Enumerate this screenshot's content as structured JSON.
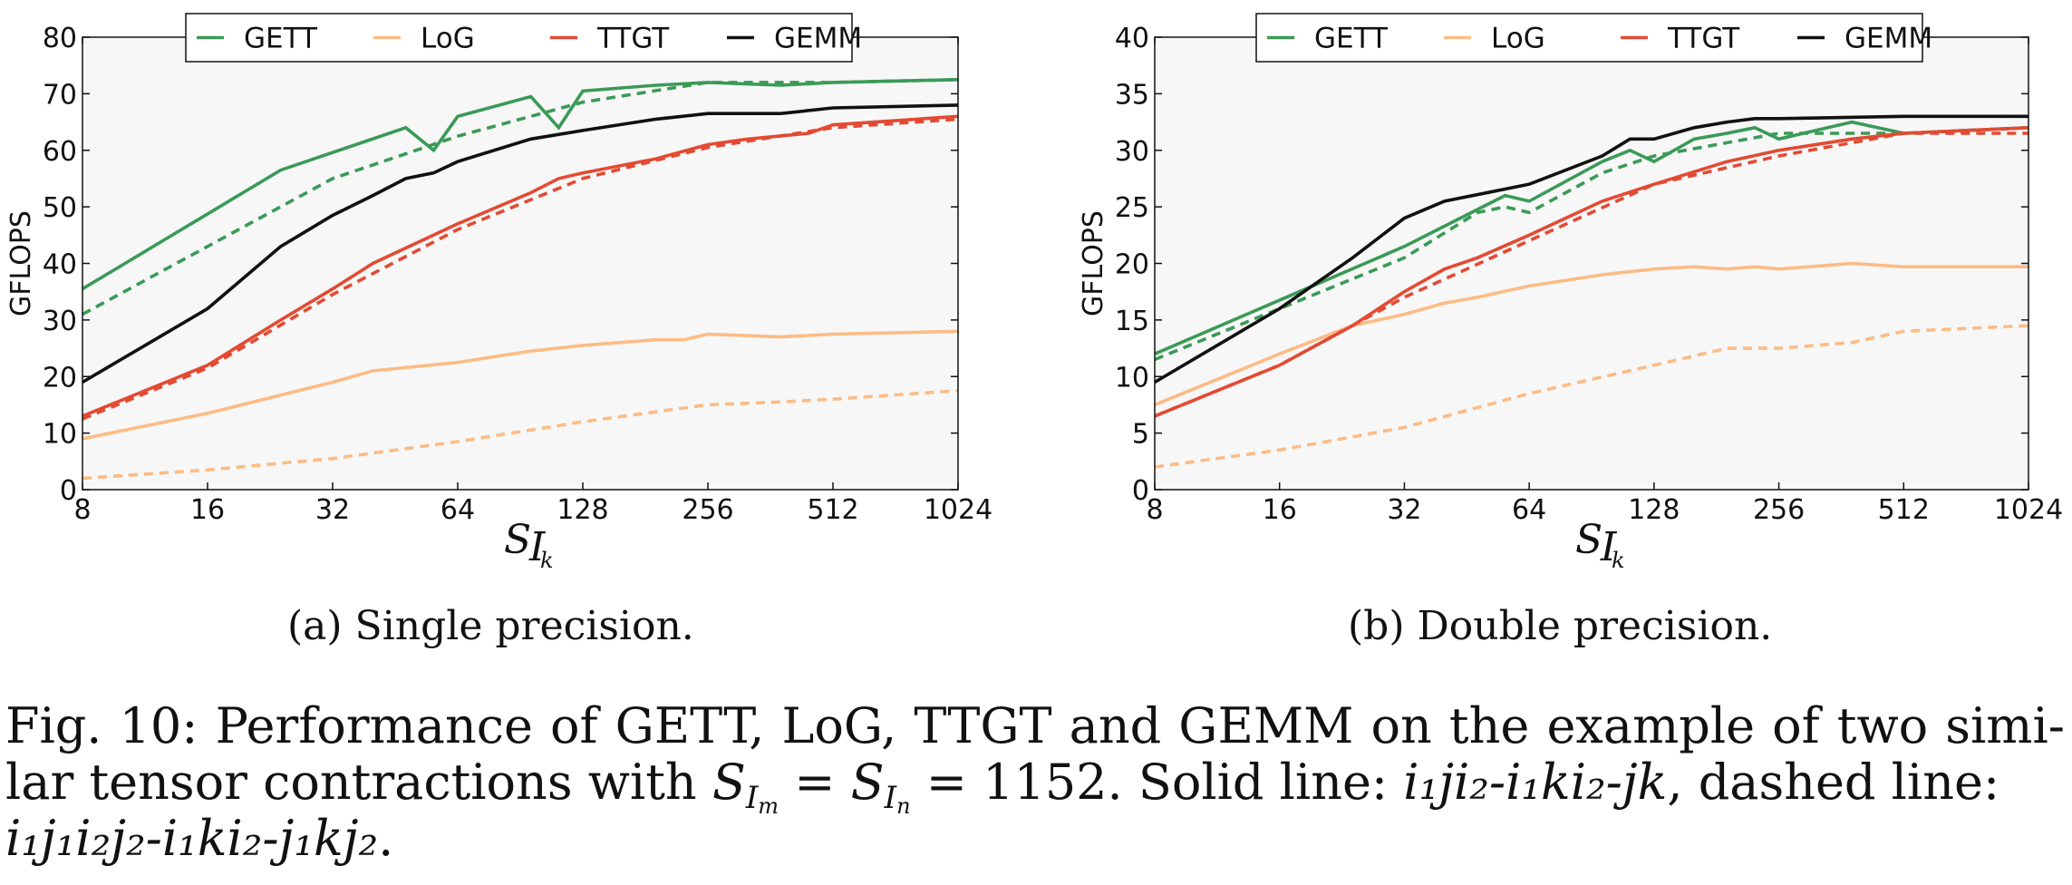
{
  "chart_data": [
    {
      "type": "line",
      "ylabel": "GFLOPS",
      "xlabel": "S_{I_k}",
      "xscale": "log2",
      "xlim": [
        8,
        1024
      ],
      "ylim": [
        0,
        80
      ],
      "xticks": [
        8,
        16,
        32,
        64,
        128,
        256,
        512,
        1024
      ],
      "xtick_labels": [
        "8",
        "16",
        "32",
        "64",
        "128",
        "256",
        "512",
        "1024"
      ],
      "yticks": [
        0,
        10,
        20,
        30,
        40,
        50,
        60,
        70,
        80
      ],
      "ytick_labels": [
        "0",
        "10",
        "20",
        "30",
        "40",
        "50",
        "60",
        "70",
        "80"
      ],
      "legend": {
        "placement": "top-center",
        "entries": [
          "GETT",
          "LoG",
          "TTGT",
          "GEMM"
        ]
      },
      "background": "#f7f7f7",
      "caption": "(a) Single precision.",
      "series": [
        {
          "name": "GETT",
          "style": "solid",
          "color": "#3a9a57",
          "x": [
            8,
            24,
            48,
            56,
            64,
            96,
            112,
            128,
            192,
            256,
            384,
            512,
            1024
          ],
          "values": [
            35.5,
            56.5,
            64,
            60,
            66,
            69.5,
            64,
            70.5,
            71.5,
            72,
            71.5,
            72,
            72.5
          ]
        },
        {
          "name": "GETT",
          "style": "dashed",
          "color": "#3a9a57",
          "x": [
            8,
            16,
            32,
            64,
            128,
            256,
            512,
            1024
          ],
          "values": [
            31,
            43,
            55,
            62.5,
            68.5,
            72,
            72,
            72.5
          ]
        },
        {
          "name": "LoG",
          "style": "solid",
          "color": "#fdbb84",
          "x": [
            8,
            16,
            32,
            40,
            64,
            96,
            128,
            192,
            224,
            256,
            384,
            512,
            1024
          ],
          "values": [
            9,
            13.5,
            19,
            21,
            22.5,
            24.5,
            25.5,
            26.5,
            26.5,
            27.5,
            27,
            27.5,
            28
          ]
        },
        {
          "name": "LoG",
          "style": "dashed",
          "color": "#fdbb84",
          "x": [
            8,
            16,
            32,
            64,
            128,
            256,
            384,
            512,
            1024
          ],
          "values": [
            2,
            3.5,
            5.5,
            8.5,
            12,
            15,
            15.5,
            16,
            17.5
          ]
        },
        {
          "name": "TTGT",
          "style": "solid",
          "color": "#e34a33",
          "x": [
            8,
            16,
            24,
            32,
            40,
            64,
            96,
            112,
            128,
            192,
            256,
            320,
            448,
            512,
            1024
          ],
          "values": [
            13,
            22,
            30,
            35.5,
            40,
            47,
            52.5,
            55,
            56,
            58.5,
            61,
            62,
            63,
            64.5,
            66
          ]
        },
        {
          "name": "TTGT",
          "style": "dashed",
          "color": "#e34a33",
          "x": [
            8,
            16,
            32,
            64,
            128,
            256,
            512,
            1024
          ],
          "values": [
            12.5,
            21.5,
            34.5,
            46,
            55,
            60.5,
            64,
            65.5
          ]
        },
        {
          "name": "GEMM",
          "style": "solid",
          "color": "#111111",
          "x": [
            8,
            16,
            24,
            32,
            40,
            48,
            56,
            64,
            96,
            128,
            192,
            256,
            384,
            512,
            1024
          ],
          "values": [
            19,
            32,
            43,
            48.5,
            52,
            55,
            56,
            58,
            62,
            63.5,
            65.5,
            66.5,
            66.5,
            67.5,
            68
          ]
        }
      ]
    },
    {
      "type": "line",
      "ylabel": "GFLOPS",
      "xlabel": "S_{I_k}",
      "xscale": "log2",
      "xlim": [
        8,
        1024
      ],
      "ylim": [
        0,
        40
      ],
      "xticks": [
        8,
        16,
        32,
        64,
        128,
        256,
        512,
        1024
      ],
      "xtick_labels": [
        "8",
        "16",
        "32",
        "64",
        "128",
        "256",
        "512",
        "1024"
      ],
      "yticks": [
        0,
        5,
        10,
        15,
        20,
        25,
        30,
        35,
        40
      ],
      "ytick_labels": [
        "0",
        "5",
        "10",
        "15",
        "20",
        "25",
        "30",
        "35",
        "40"
      ],
      "legend": {
        "placement": "top-center",
        "entries": [
          "GETT",
          "LoG",
          "TTGT",
          "GEMM"
        ]
      },
      "background": "#f7f7f7",
      "caption": "(b) Double precision.",
      "series": [
        {
          "name": "GETT",
          "style": "solid",
          "color": "#3a9a57",
          "x": [
            8,
            32,
            56,
            64,
            96,
            112,
            128,
            160,
            192,
            224,
            256,
            384,
            512,
            1024
          ],
          "values": [
            12,
            21.5,
            26,
            25.5,
            29,
            30,
            29,
            31,
            31.5,
            32,
            31,
            32.5,
            31.5,
            32
          ]
        },
        {
          "name": "GETT",
          "style": "dashed",
          "color": "#3a9a57",
          "x": [
            8,
            16,
            32,
            48,
            56,
            64,
            96,
            128,
            256,
            512,
            1024
          ],
          "values": [
            11.5,
            16,
            20.5,
            24.5,
            25,
            24.5,
            28,
            29.5,
            31.5,
            31.5,
            32
          ]
        },
        {
          "name": "LoG",
          "style": "solid",
          "color": "#fdbb84",
          "x": [
            8,
            16,
            24,
            32,
            40,
            48,
            64,
            96,
            128,
            160,
            192,
            224,
            256,
            384,
            512,
            1024
          ],
          "values": [
            7.5,
            12,
            14.5,
            15.5,
            16.5,
            17,
            18,
            19,
            19.5,
            19.7,
            19.5,
            19.7,
            19.5,
            20,
            19.7,
            19.7
          ]
        },
        {
          "name": "LoG",
          "style": "dashed",
          "color": "#fdbb84",
          "x": [
            8,
            16,
            32,
            64,
            128,
            192,
            256,
            384,
            512,
            1024
          ],
          "values": [
            2,
            3.5,
            5.5,
            8.5,
            11,
            12.5,
            12.5,
            13,
            14,
            14.5
          ]
        },
        {
          "name": "TTGT",
          "style": "solid",
          "color": "#e34a33",
          "x": [
            8,
            16,
            24,
            32,
            40,
            48,
            64,
            96,
            128,
            192,
            256,
            384,
            512,
            1024
          ],
          "values": [
            6.5,
            11,
            14.5,
            17.5,
            19.5,
            20.5,
            22.5,
            25.5,
            27,
            29,
            30,
            31,
            31.5,
            32
          ]
        },
        {
          "name": "TTGT",
          "style": "dashed",
          "color": "#e34a33",
          "x": [
            8,
            16,
            32,
            64,
            128,
            256,
            512,
            1024
          ],
          "values": [
            6.5,
            11,
            17,
            22,
            27,
            29.5,
            31.5,
            31.5
          ]
        },
        {
          "name": "GEMM",
          "style": "solid",
          "color": "#111111",
          "x": [
            8,
            16,
            24,
            32,
            40,
            64,
            96,
            112,
            128,
            160,
            192,
            224,
            256,
            512,
            1024
          ],
          "values": [
            9.5,
            16,
            20.5,
            24,
            25.5,
            27,
            29.5,
            31,
            31,
            32,
            32.5,
            32.8,
            32.8,
            33,
            33
          ]
        }
      ]
    }
  ],
  "caption": {
    "lead": "Fig. 10: Performance of GETT, LoG, TTGT and GEMM on the example of two simi-",
    "line2_start": "lar tensor contractions with ",
    "math_S": "S",
    "math_I": "I",
    "sub_m": "m",
    "sub_n": "n",
    "equals": " = ",
    "value": "1152",
    "solid_label": ". Solid line: ",
    "solid_expr": "i₁ji₂-i₁ki₂-jk",
    "dashed_label": ", dashed line:",
    "dashed_expr": "i₁j₁i₂j₂-i₁ki₂-j₁kj₂",
    "end": "."
  }
}
